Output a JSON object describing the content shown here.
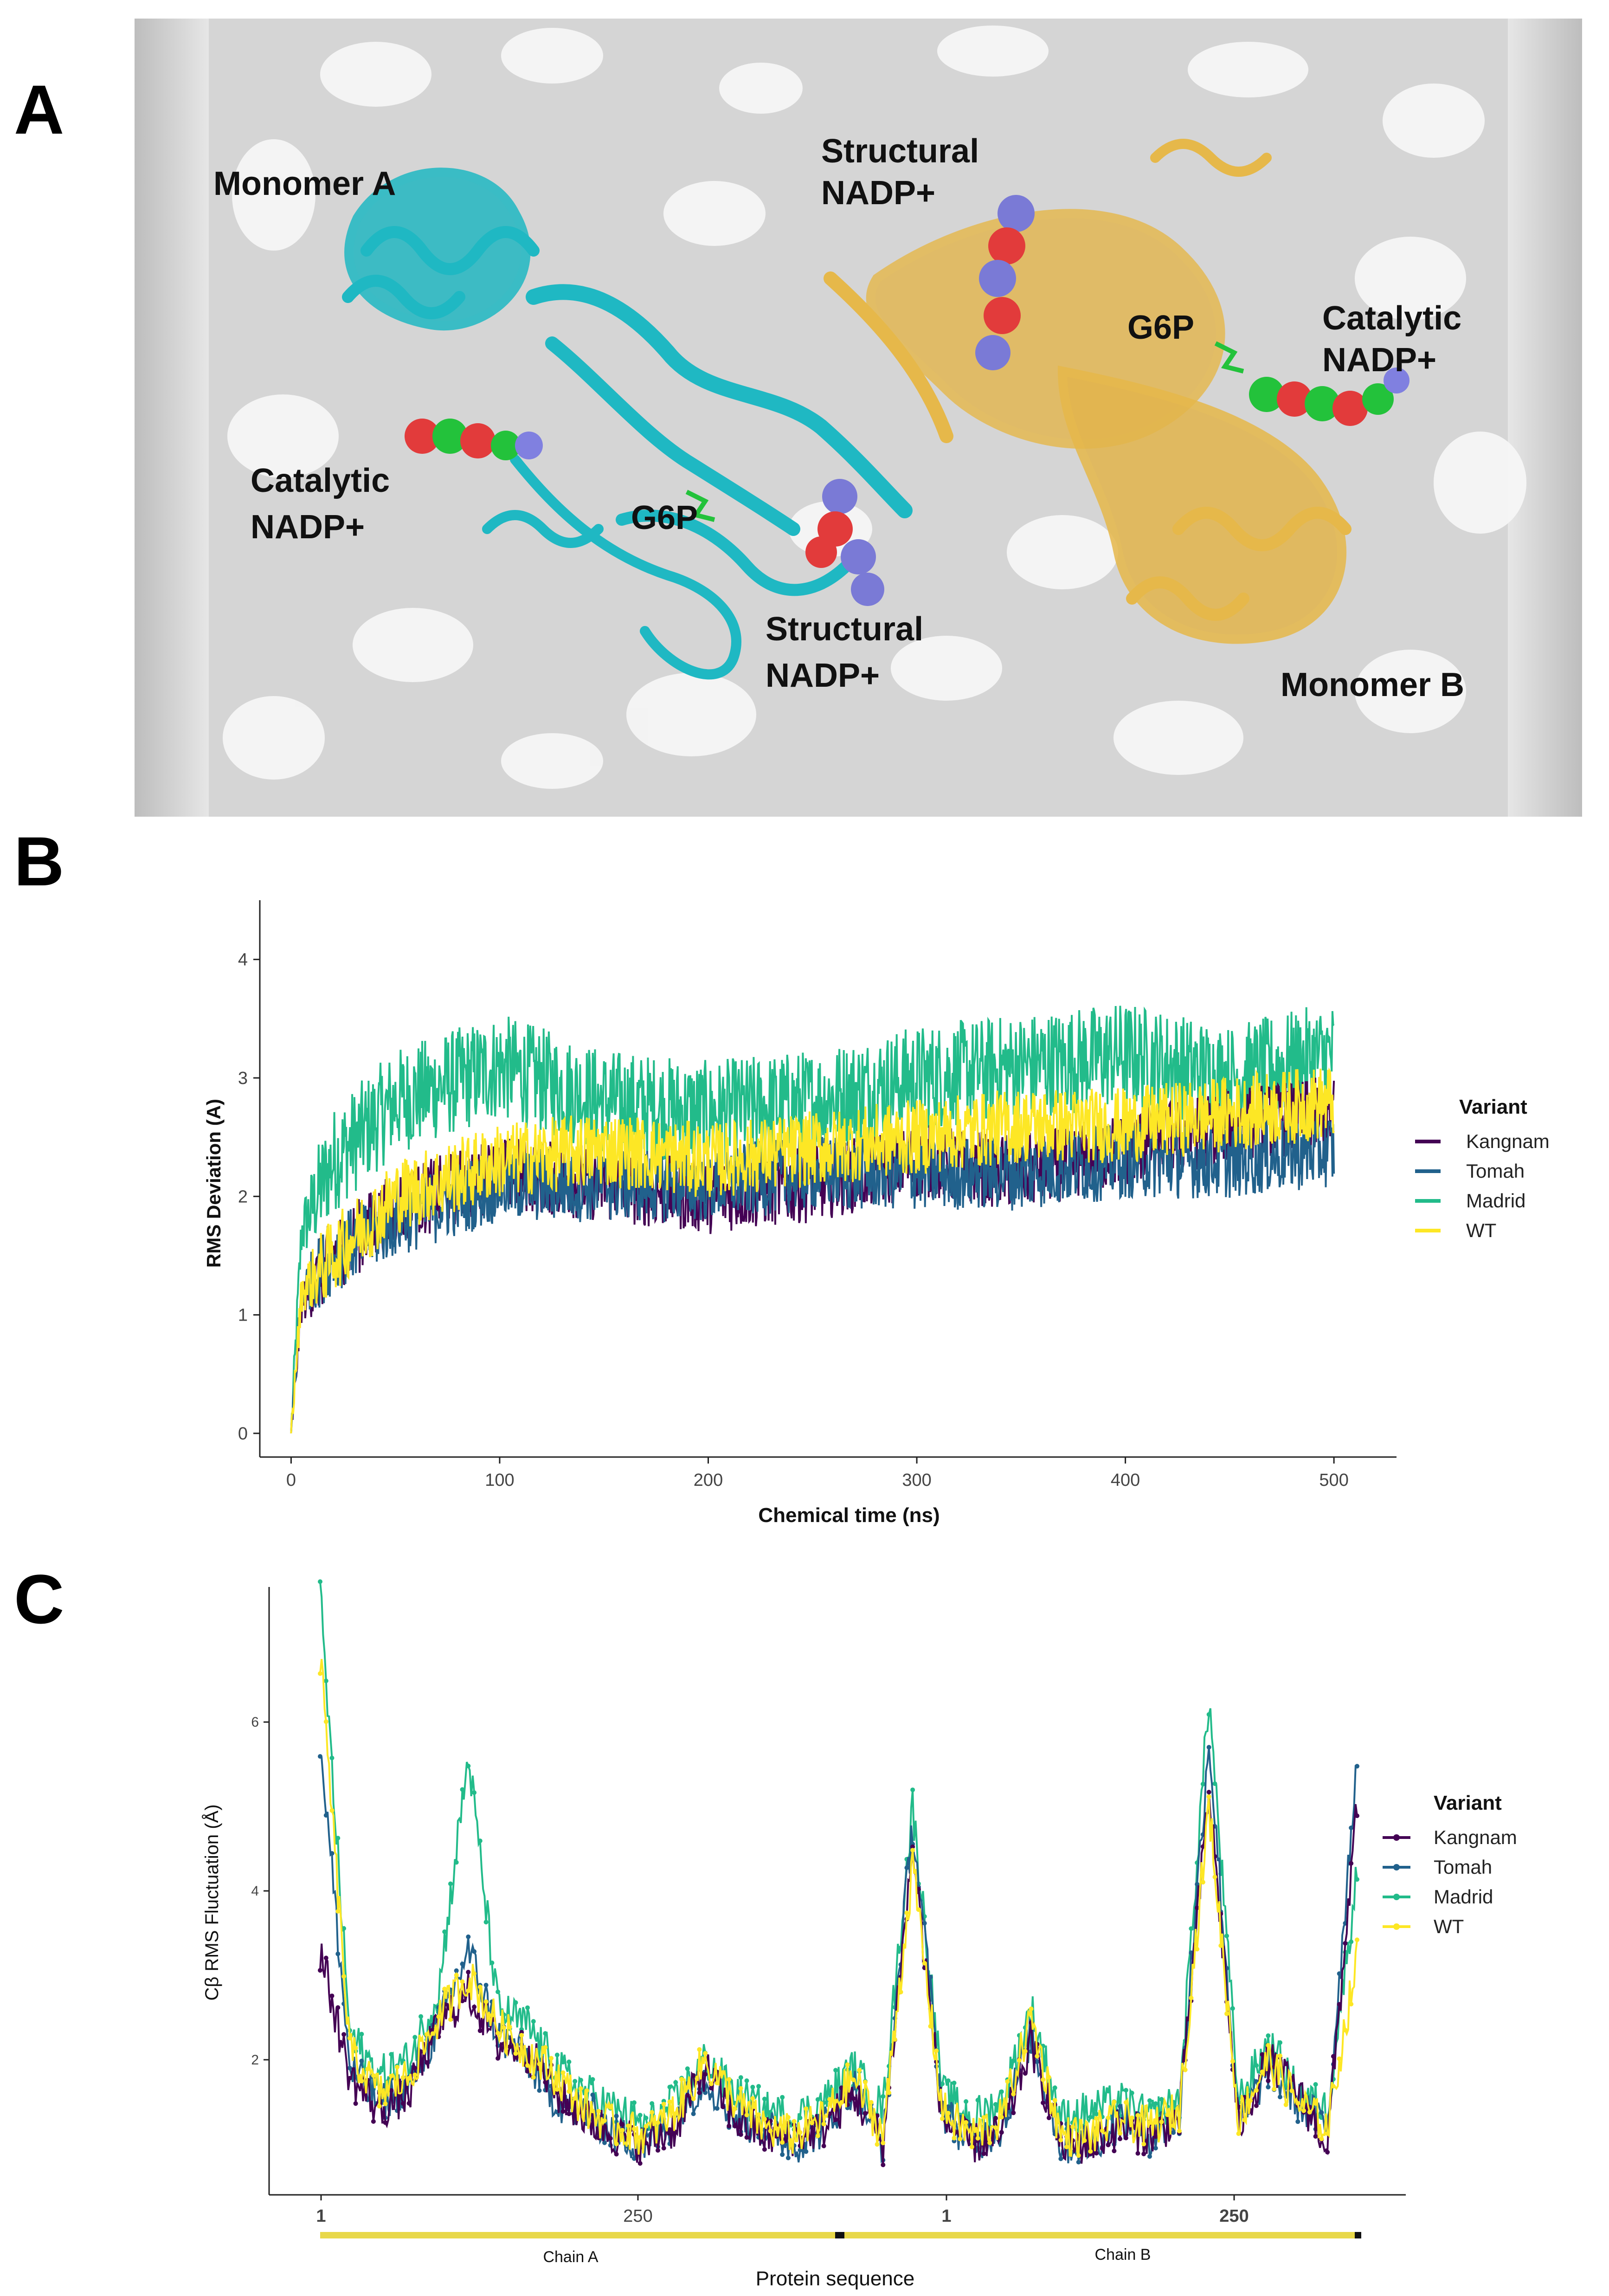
{
  "panels": {
    "a_letter": "A",
    "b_letter": "B",
    "c_letter": "C"
  },
  "structure": {
    "labels": {
      "monomer_a": "Monomer A",
      "monomer_b": "Monomer B",
      "structural_top_1": "Structural",
      "structural_top_2": "NADP+",
      "catalytic_right_1": "Catalytic",
      "catalytic_right_2": "NADP+",
      "g6p_right": "G6P",
      "catalytic_left_1": "Catalytic",
      "catalytic_left_2": "NADP+",
      "g6p_left": "G6P",
      "structural_bottom_1": "Structural",
      "structural_bottom_2": "NADP+"
    },
    "colors": {
      "monomer_a": "#1fb8c3",
      "monomer_b": "#e6b84a",
      "background": "#d9d9d9"
    }
  },
  "legend": {
    "title": "Variant",
    "items": [
      {
        "name": "Kangnam",
        "color": "#440154"
      },
      {
        "name": "Tomah",
        "color": "#21618c"
      },
      {
        "name": "Madrid",
        "color": "#22bb8a"
      },
      {
        "name": "WT",
        "color": "#fde725"
      }
    ]
  },
  "chart_data": [
    {
      "type": "line",
      "panel": "B",
      "title": "",
      "xlabel": "Chemical  time (ns)",
      "ylabel": "RMS Deviation (A)",
      "xlim": [
        -15,
        530
      ],
      "ylim": [
        -0.2,
        4.5
      ],
      "xticks": [
        0,
        100,
        200,
        300,
        400,
        500
      ],
      "yticks": [
        0,
        1,
        2,
        3,
        4
      ],
      "series": [
        {
          "name": "Kangnam",
          "values_x": [
            0,
            5,
            20,
            50,
            100,
            150,
            200,
            250,
            300,
            350,
            400,
            450,
            500
          ],
          "values_y": [
            0.0,
            1.1,
            1.5,
            1.9,
            2.2,
            2.1,
            2.0,
            2.1,
            2.3,
            2.2,
            2.4,
            2.6,
            2.7
          ]
        },
        {
          "name": "Tomah",
          "values_x": [
            0,
            5,
            20,
            50,
            100,
            150,
            200,
            250,
            300,
            350,
            400,
            450,
            500
          ],
          "values_y": [
            0.0,
            1.2,
            1.5,
            1.8,
            2.1,
            2.1,
            2.1,
            2.2,
            2.2,
            2.2,
            2.3,
            2.3,
            2.4
          ]
        },
        {
          "name": "Madrid",
          "values_x": [
            0,
            5,
            20,
            50,
            100,
            150,
            200,
            250,
            300,
            350,
            400,
            450,
            500
          ],
          "values_y": [
            0.0,
            1.7,
            2.3,
            2.8,
            3.1,
            2.8,
            2.7,
            2.8,
            3.0,
            3.1,
            3.2,
            3.0,
            3.2
          ]
        },
        {
          "name": "WT",
          "values_x": [
            0,
            5,
            20,
            50,
            100,
            150,
            200,
            250,
            300,
            350,
            400,
            450,
            500
          ],
          "values_y": [
            0.0,
            1.2,
            1.5,
            2.0,
            2.3,
            2.4,
            2.3,
            2.4,
            2.5,
            2.6,
            2.6,
            2.7,
            2.8
          ]
        }
      ],
      "legend_position": "right"
    },
    {
      "type": "line",
      "panel": "C",
      "title": "",
      "xlabel": "Protein sequence",
      "ylabel": "Cβ RMS Fluctuation (Å)",
      "ylim": [
        0.4,
        7.6
      ],
      "yticks": [
        2,
        4,
        6
      ],
      "xtick_labels": [
        "1",
        "250",
        "1",
        "250"
      ],
      "chain_labels": [
        "Chain A",
        "Chain B"
      ],
      "series": [
        {
          "name": "Kangnam",
          "values": [
            3.3,
            1.8,
            1.4,
            1.6,
            2.4,
            2.8,
            2.2,
            2.1,
            1.6,
            1.3,
            1.1,
            1.0,
            1.2,
            1.9,
            1.3,
            1.1,
            1.1,
            1.2,
            1.6,
            1.0,
            4.5,
            1.3,
            1.0,
            1.1,
            2.2,
            1.0,
            1.0,
            1.2,
            1.1,
            1.3,
            5.2,
            1.2,
            2.0,
            1.6,
            1.0,
            5.0
          ]
        },
        {
          "name": "Tomah",
          "values": [
            5.8,
            1.9,
            1.5,
            1.7,
            2.4,
            3.3,
            2.3,
            2.0,
            1.5,
            1.4,
            1.1,
            1.0,
            1.3,
            1.8,
            1.3,
            1.2,
            1.0,
            1.2,
            1.7,
            1.0,
            4.8,
            1.4,
            1.0,
            1.2,
            2.3,
            1.0,
            1.0,
            1.3,
            1.1,
            1.3,
            5.8,
            1.2,
            1.9,
            1.5,
            1.2,
            5.6
          ]
        },
        {
          "name": "Madrid",
          "values": [
            7.5,
            2.3,
            1.8,
            2.0,
            2.8,
            5.6,
            2.6,
            2.4,
            1.9,
            1.6,
            1.4,
            1.2,
            1.5,
            2.0,
            1.6,
            1.4,
            1.3,
            1.5,
            1.9,
            1.4,
            5.0,
            1.6,
            1.3,
            1.5,
            2.6,
            1.3,
            1.4,
            1.5,
            1.3,
            1.5,
            6.3,
            1.5,
            2.2,
            1.6,
            1.4,
            4.2
          ]
        },
        {
          "name": "WT",
          "values": [
            6.8,
            2.1,
            1.6,
            1.8,
            2.5,
            3.0,
            2.4,
            2.1,
            1.8,
            1.4,
            1.2,
            1.1,
            1.4,
            2.0,
            1.5,
            1.2,
            1.1,
            1.3,
            1.8,
            1.1,
            4.3,
            1.4,
            1.1,
            1.3,
            2.5,
            1.1,
            1.1,
            1.3,
            1.2,
            1.4,
            5.0,
            1.3,
            2.0,
            1.5,
            1.2,
            3.2
          ]
        }
      ],
      "legend_position": "right"
    }
  ]
}
